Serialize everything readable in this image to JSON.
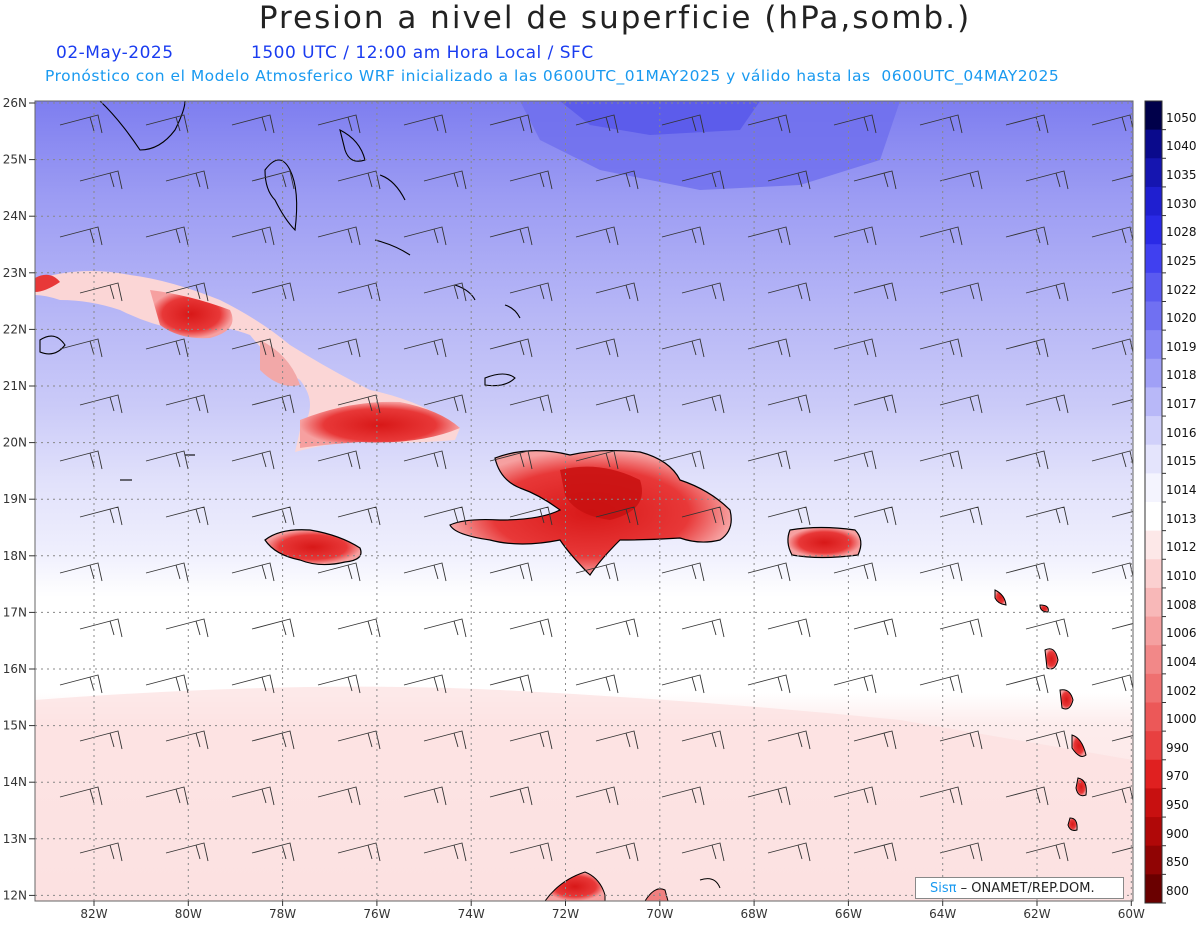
{
  "header": {
    "title": "Presion a nivel de superficie (hPa,somb.)",
    "date": "02-May-2025",
    "time": "1500 UTC / 12:00 am Hora Local / SFC",
    "model_info": "Pronóstico con el Modelo Atmosferico WRF inicializado a las 0600UTC_01MAY2025 y válido hasta las  0600UTC_04MAY2025"
  },
  "map": {
    "lat_labels": [
      "26N",
      "25N",
      "24N",
      "23N",
      "22N",
      "21N",
      "20N",
      "19N",
      "18N",
      "17N",
      "16N",
      "15N",
      "14N",
      "13N",
      "12N"
    ],
    "lon_labels": [
      "82W",
      "80W",
      "78W",
      "76W",
      "74W",
      "72W",
      "70W",
      "68W",
      "66W",
      "64W",
      "62W",
      "60W"
    ]
  },
  "colorbar": {
    "levels": [
      "1050",
      "1040",
      "1035",
      "1030",
      "1028",
      "1025",
      "1022",
      "1020",
      "1019",
      "1018",
      "1017",
      "1016",
      "1015",
      "1014",
      "1013",
      "1012",
      "1010",
      "1008",
      "1006",
      "1004",
      "1002",
      "1000",
      "990",
      "970",
      "950",
      "900",
      "850",
      "800"
    ],
    "colors": [
      "#00004a",
      "#0a0a8c",
      "#1515b0",
      "#1f1fd0",
      "#2a2ae6",
      "#4040f0",
      "#5a5af0",
      "#7070f2",
      "#8888f4",
      "#a0a0f6",
      "#b8b8f8",
      "#d0d0fa",
      "#e4e4fc",
      "#f4f4fe",
      "#ffffff",
      "#fde8e8",
      "#fbd0d0",
      "#f8b8b8",
      "#f5a0a0",
      "#f28888",
      "#ef7070",
      "#ec5858",
      "#e84040",
      "#e02020",
      "#c81010",
      "#b00808",
      "#900404",
      "#6a0000"
    ]
  },
  "credit": {
    "brand": "Sisπ",
    "org": " – ONAMET/REP.DOM."
  }
}
